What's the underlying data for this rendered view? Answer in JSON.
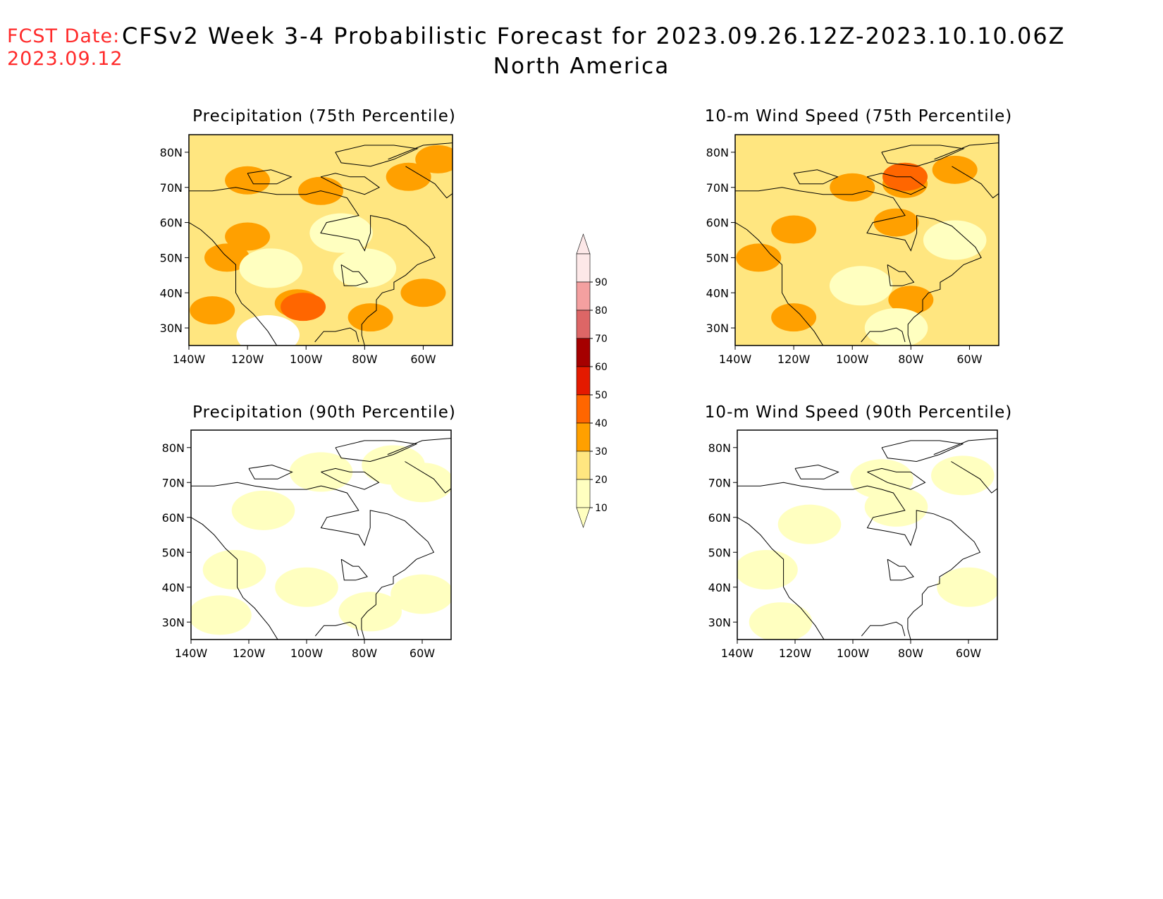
{
  "header": {
    "fcst_label": "FCST Date:",
    "fcst_date": "2023.09.12",
    "title": "CFSv2 Week 3-4 Probabilistic Forecast for 2023.09.26.12Z-2023.10.10.06Z",
    "region": "North America",
    "label_color": "#ff2a2a"
  },
  "axes": {
    "lat_labels": [
      "80N",
      "70N",
      "60N",
      "50N",
      "40N",
      "30N"
    ],
    "lon_labels": [
      "140W",
      "120W",
      "100W",
      "80W",
      "60W"
    ]
  },
  "panels": [
    {
      "title": "Precipitation (75th Percentile)",
      "base_level": 20,
      "blobs": [
        {
          "lon": -127,
          "lat": 50,
          "level": 30
        },
        {
          "lon": -120,
          "lat": 56,
          "level": 30
        },
        {
          "lon": -103,
          "lat": 37,
          "level": 30
        },
        {
          "lon": -101,
          "lat": 36,
          "level": 40
        },
        {
          "lon": -78,
          "lat": 33,
          "level": 30
        },
        {
          "lon": -60,
          "lat": 40,
          "level": 30
        },
        {
          "lon": -65,
          "lat": 73,
          "level": 30
        },
        {
          "lon": -95,
          "lat": 69,
          "level": 30
        },
        {
          "lon": -120,
          "lat": 72,
          "level": 30
        },
        {
          "lon": -55,
          "lat": 78,
          "level": 30
        },
        {
          "lon": -132,
          "lat": 35,
          "level": 30
        },
        {
          "lon": -80,
          "lat": 47,
          "level": 10
        },
        {
          "lon": -112,
          "lat": 47,
          "level": 10
        },
        {
          "lon": -88,
          "lat": 57,
          "level": 10
        },
        {
          "lon": -113,
          "lat": 28,
          "level": 0
        }
      ]
    },
    {
      "title": "10-m Wind Speed (75th Percentile)",
      "base_level": 20,
      "blobs": [
        {
          "lon": -100,
          "lat": 70,
          "level": 30
        },
        {
          "lon": -82,
          "lat": 71,
          "level": 30
        },
        {
          "lon": -82,
          "lat": 73,
          "level": 40
        },
        {
          "lon": -120,
          "lat": 58,
          "level": 30
        },
        {
          "lon": -132,
          "lat": 50,
          "level": 30
        },
        {
          "lon": -85,
          "lat": 60,
          "level": 30
        },
        {
          "lon": -80,
          "lat": 38,
          "level": 30
        },
        {
          "lon": -65,
          "lat": 75,
          "level": 30
        },
        {
          "lon": -120,
          "lat": 33,
          "level": 30
        },
        {
          "lon": -97,
          "lat": 42,
          "level": 10
        },
        {
          "lon": -85,
          "lat": 30,
          "level": 10
        },
        {
          "lon": -65,
          "lat": 55,
          "level": 10
        }
      ]
    },
    {
      "title": "Precipitation (90th Percentile)",
      "base_level": 0,
      "blobs": [
        {
          "lon": -95,
          "lat": 73,
          "level": 10
        },
        {
          "lon": -70,
          "lat": 75,
          "level": 10
        },
        {
          "lon": -125,
          "lat": 45,
          "level": 10
        },
        {
          "lon": -100,
          "lat": 40,
          "level": 10
        },
        {
          "lon": -60,
          "lat": 38,
          "level": 10
        },
        {
          "lon": -78,
          "lat": 33,
          "level": 10
        },
        {
          "lon": -115,
          "lat": 62,
          "level": 10
        },
        {
          "lon": -130,
          "lat": 32,
          "level": 10
        },
        {
          "lon": -60,
          "lat": 70,
          "level": 10
        }
      ]
    },
    {
      "title": "10-m Wind Speed (90th Percentile)",
      "base_level": 0,
      "blobs": [
        {
          "lon": -90,
          "lat": 71,
          "level": 10
        },
        {
          "lon": -85,
          "lat": 63,
          "level": 10
        },
        {
          "lon": -130,
          "lat": 45,
          "level": 10
        },
        {
          "lon": -60,
          "lat": 40,
          "level": 10
        },
        {
          "lon": -115,
          "lat": 58,
          "level": 10
        },
        {
          "lon": -62,
          "lat": 72,
          "level": 10
        },
        {
          "lon": -125,
          "lat": 30,
          "level": 10
        }
      ]
    }
  ],
  "colorbar": {
    "levels": [
      "10",
      "20",
      "30",
      "40",
      "50",
      "60",
      "70",
      "80",
      "90"
    ],
    "colors": [
      "#ffffc0",
      "#ffe680",
      "#ffa000",
      "#ff6600",
      "#e41a00",
      "#a50000",
      "#dd6666",
      "#f4a0a0",
      "#fde8e8"
    ]
  }
}
